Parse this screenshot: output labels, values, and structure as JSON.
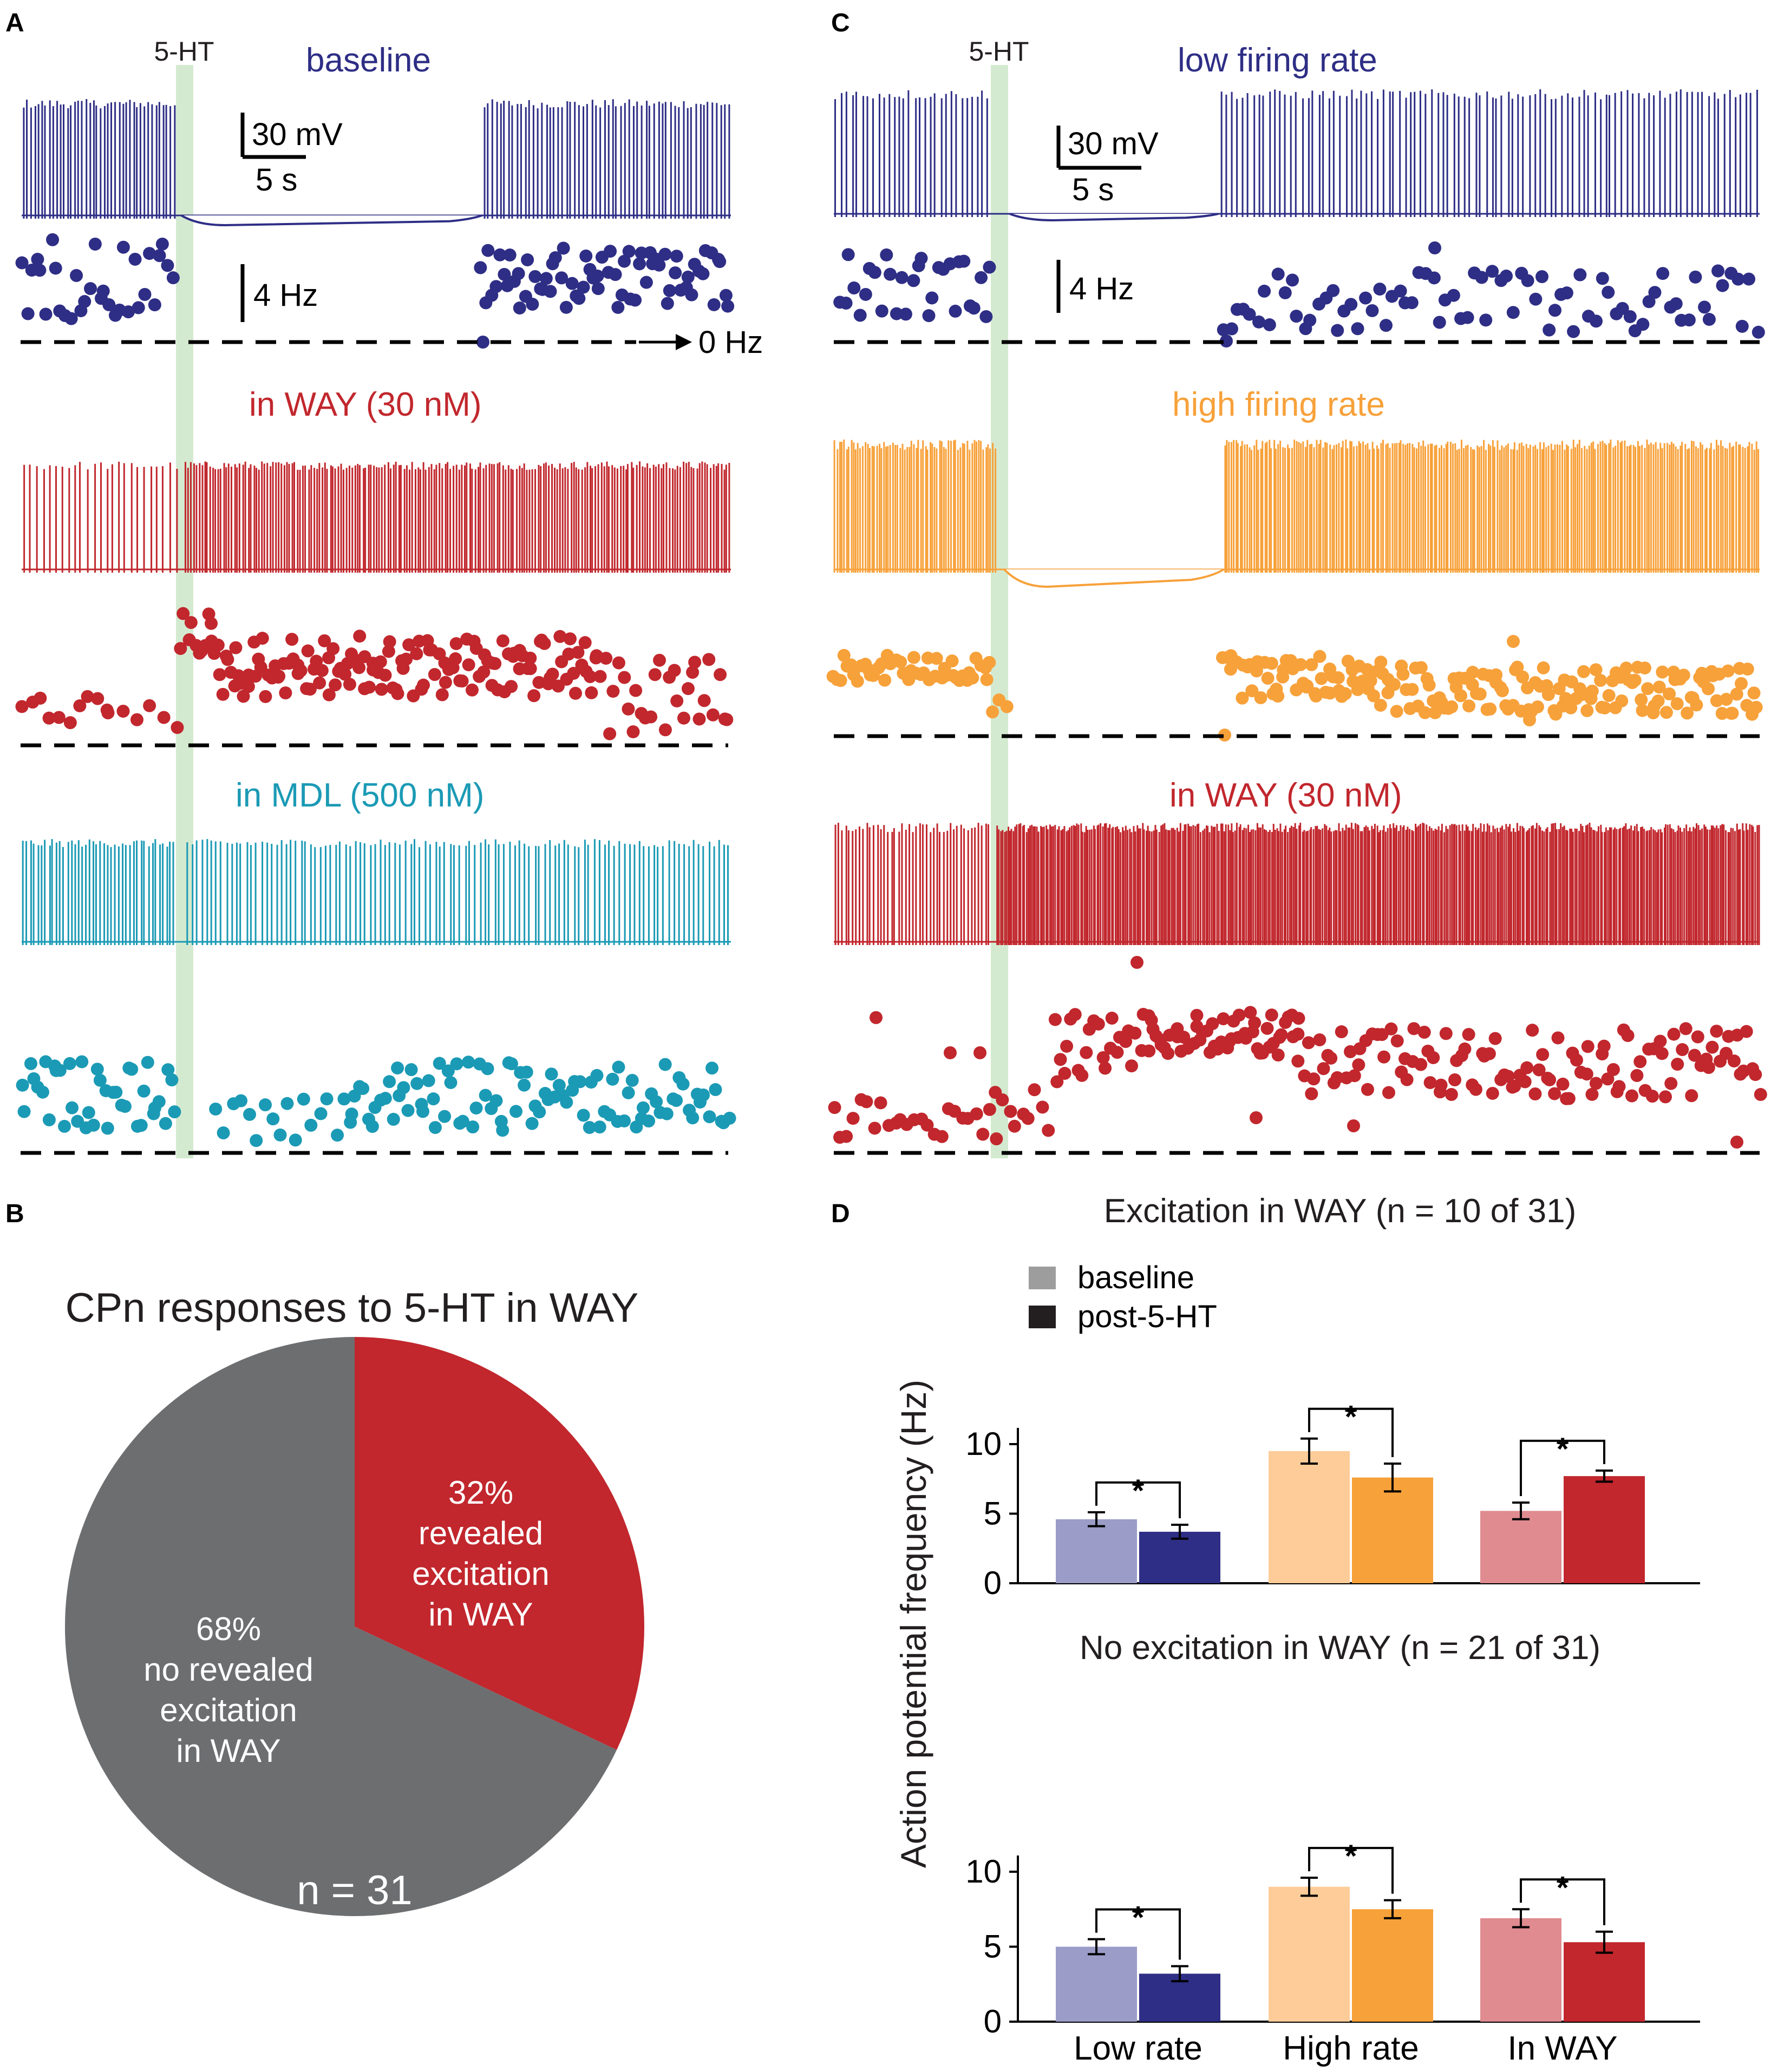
{
  "panels": {
    "A": "A",
    "B": "B",
    "C": "C",
    "D": "D"
  },
  "colors": {
    "blue": "#2e2e86",
    "red": "#c1272d",
    "teal": "#1b9ab5",
    "orange": "#f7a13a",
    "gray": "#6d6e70",
    "green": "#d4ead0",
    "blue_light": "#9b9dc8",
    "orange_light": "#fdcc99",
    "red_light": "#df8b90"
  },
  "panel_a": {
    "stim_label": "5-HT",
    "traces": [
      {
        "label": "baseline",
        "color_key": "blue"
      },
      {
        "label": "in WAY (30 nM)",
        "color_key": "red"
      },
      {
        "label": "in MDL (500 nM)",
        "color_key": "teal"
      }
    ],
    "scale_mv": "30 mV",
    "scale_s": "5 s",
    "scale_hz": "4 Hz",
    "zero_label": "0 Hz"
  },
  "panel_c": {
    "stim_label": "5-HT",
    "traces": [
      {
        "label": "low firing rate",
        "color_key": "blue"
      },
      {
        "label": "high firing rate",
        "color_key": "orange"
      },
      {
        "label": "in WAY (30 nM)",
        "color_key": "red"
      }
    ],
    "scale_mv": "30 mV",
    "scale_s": "5 s",
    "scale_hz": "4 Hz"
  },
  "chart_data": [
    {
      "type": "pie",
      "title": "CPn responses to 5-HT in WAY",
      "slices": [
        {
          "label": "revealed excitation in WAY",
          "percent": 32,
          "lines": [
            "32%",
            "revealed",
            "excitation",
            "in WAY"
          ],
          "color_key": "red"
        },
        {
          "label": "no revealed excitation in WAY",
          "percent": 68,
          "lines": [
            "68%",
            "no revealed",
            "excitation",
            "in WAY"
          ],
          "color_key": "gray"
        }
      ],
      "n_label": "n = 31"
    },
    {
      "type": "bar",
      "title": "Excitation in WAY (n = 10 of 31)",
      "ylabel": "Action potential frequency (Hz)",
      "categories": [
        "Low rate",
        "High rate",
        "In WAY"
      ],
      "ylim": [
        0,
        10
      ],
      "yticks": [
        0,
        5,
        10
      ],
      "legend": [
        "baseline",
        "post-5-HT"
      ],
      "series": [
        {
          "name": "baseline",
          "values": [
            4.6,
            9.5,
            5.2
          ],
          "errors": [
            0.5,
            0.9,
            0.6
          ]
        },
        {
          "name": "post-5-HT",
          "values": [
            3.7,
            7.6,
            7.7
          ],
          "errors": [
            0.5,
            1.0,
            0.4
          ]
        }
      ],
      "significance": [
        "*",
        "*",
        "*"
      ]
    },
    {
      "type": "bar",
      "title": "No excitation in WAY (n = 21 of 31)",
      "ylabel": "Action potential frequency (Hz)",
      "categories": [
        "Low rate",
        "High rate",
        "In WAY"
      ],
      "ylim": [
        0,
        10
      ],
      "yticks": [
        0,
        5,
        10
      ],
      "series": [
        {
          "name": "baseline",
          "values": [
            5.0,
            9.0,
            6.9
          ],
          "errors": [
            0.5,
            0.6,
            0.6
          ]
        },
        {
          "name": "post-5-HT",
          "values": [
            3.2,
            7.5,
            5.3
          ],
          "errors": [
            0.5,
            0.6,
            0.7
          ]
        }
      ],
      "significance": [
        "*",
        "*",
        "*"
      ]
    }
  ]
}
